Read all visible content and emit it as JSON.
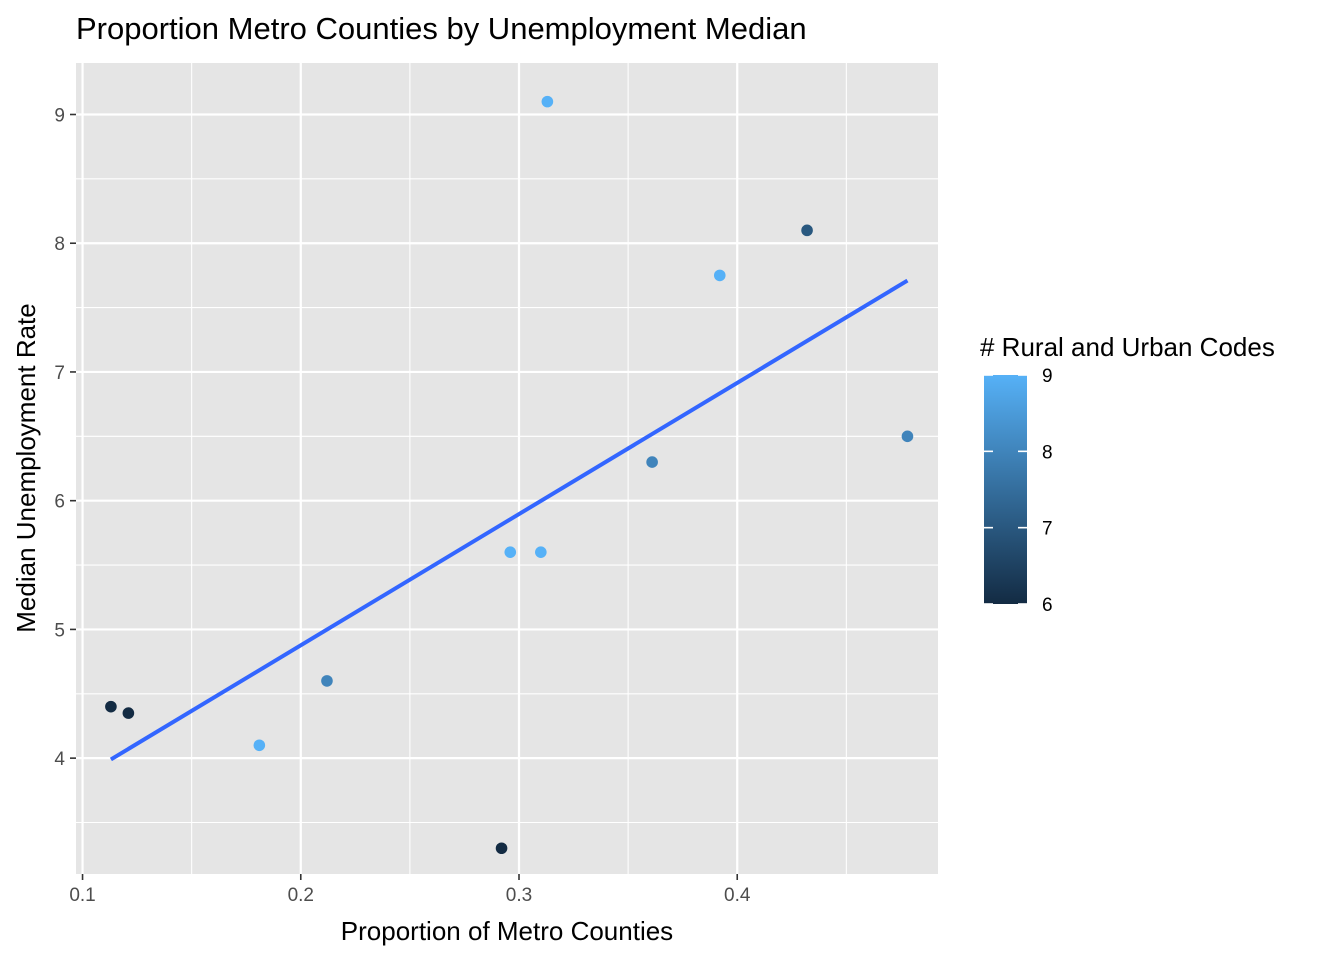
{
  "chart_data": {
    "type": "scatter",
    "title": "Proportion Metro Counties by Unemployment Median",
    "xlabel": "Proportion of Metro Counties",
    "ylabel": "Median Unemployment Rate",
    "xlim": [
      0.097,
      0.492
    ],
    "ylim": [
      3.1,
      9.4
    ],
    "x_ticks": [
      0.1,
      0.2,
      0.3,
      0.4
    ],
    "x_tick_labels": [
      "0.1",
      "0.2",
      "0.3",
      "0.4"
    ],
    "y_ticks": [
      4,
      5,
      6,
      7,
      8,
      9
    ],
    "y_tick_labels": [
      "4",
      "5",
      "6",
      "7",
      "8",
      "9"
    ],
    "grid": true,
    "points": [
      {
        "x": 0.113,
        "y": 4.4,
        "codes": 6
      },
      {
        "x": 0.121,
        "y": 4.35,
        "codes": 6
      },
      {
        "x": 0.181,
        "y": 4.1,
        "codes": 9
      },
      {
        "x": 0.212,
        "y": 4.6,
        "codes": 8
      },
      {
        "x": 0.292,
        "y": 3.3,
        "codes": 6
      },
      {
        "x": 0.296,
        "y": 5.6,
        "codes": 9
      },
      {
        "x": 0.31,
        "y": 5.6,
        "codes": 9
      },
      {
        "x": 0.313,
        "y": 9.1,
        "codes": 9
      },
      {
        "x": 0.361,
        "y": 6.3,
        "codes": 8
      },
      {
        "x": 0.392,
        "y": 7.75,
        "codes": 9
      },
      {
        "x": 0.432,
        "y": 8.1,
        "codes": 7
      },
      {
        "x": 0.478,
        "y": 6.5,
        "codes": 8
      }
    ],
    "trend_line": {
      "type": "linear",
      "color": "#3366FF",
      "start": {
        "x": 0.113,
        "y": 3.99
      },
      "end": {
        "x": 0.478,
        "y": 7.71
      }
    },
    "legend": {
      "title": "# Rural and Urban Codes",
      "placement": "right",
      "type": "colorbar",
      "min": 6,
      "max": 9,
      "ticks": [
        6,
        7,
        8,
        9
      ],
      "tick_labels": [
        "6",
        "7",
        "8",
        "9"
      ],
      "color_low": "#132B43",
      "color_high": "#56B1F7"
    },
    "colors": {
      "panel_background": "#E5E5E5",
      "grid_major": "#FFFFFF",
      "tick_text": "#4D4D4D"
    }
  }
}
